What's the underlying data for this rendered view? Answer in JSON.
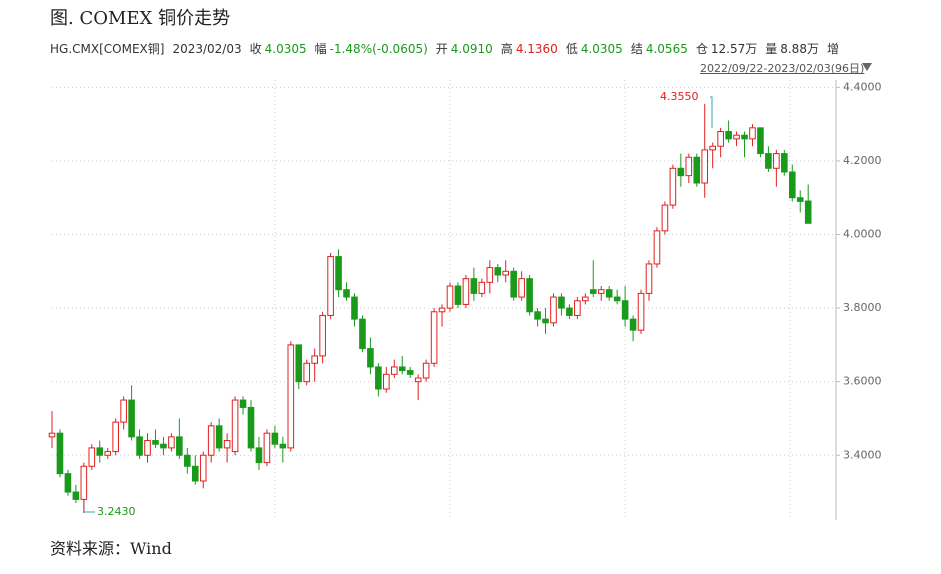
{
  "chart_data": {
    "type": "candlestick",
    "title": "图. COMEX 铜价走势",
    "header": [
      {
        "label": "HG.CMX[COMEX铜]",
        "color": "#333333"
      },
      {
        "label": "2023/02/03",
        "color": "#333333"
      },
      {
        "label": "收",
        "value": "4.0305",
        "color": "#1a9a1a"
      },
      {
        "label": "幅",
        "value": "-1.48%(-0.0605)",
        "color": "#1a9a1a"
      },
      {
        "label": "开",
        "value": "4.0910",
        "color": "#1a9a1a"
      },
      {
        "label": "高",
        "value": "4.1360",
        "color": "#e02020"
      },
      {
        "label": "低",
        "value": "4.0305",
        "color": "#1a9a1a"
      },
      {
        "label": "结",
        "value": "4.0565",
        "color": "#1a9a1a"
      },
      {
        "label": "仓",
        "value": "12.57万",
        "color": "#333333"
      },
      {
        "label": "量",
        "value": "8.88万",
        "color": "#333333"
      },
      {
        "label": "增",
        "color": "#333333"
      }
    ],
    "range_label": "2022/09/22-2023/02/03(96日)",
    "annotations": [
      "4.3550",
      "3.2430"
    ],
    "source": "资料来源：Wind",
    "up_color": "#e02020",
    "down_color": "#1a9a1a",
    "open": [
      3.45,
      3.46,
      3.35,
      3.3,
      3.28,
      3.37,
      3.42,
      3.4,
      3.41,
      3.49,
      3.55,
      3.45,
      3.4,
      3.44,
      3.43,
      3.42,
      3.45,
      3.4,
      3.37,
      3.33,
      3.4,
      3.48,
      3.42,
      3.41,
      3.55,
      3.53,
      3.42,
      3.38,
      3.46,
      3.43,
      3.42,
      3.7,
      3.6,
      3.65,
      3.67,
      3.78,
      3.94,
      3.85,
      3.83,
      3.77,
      3.69,
      3.64,
      3.58,
      3.62,
      3.64,
      3.63,
      3.6,
      3.61,
      3.65,
      3.79,
      3.8,
      3.86,
      3.81,
      3.88,
      3.84,
      3.87,
      3.91,
      3.89,
      3.9,
      3.83,
      3.88,
      3.79,
      3.77,
      3.76,
      3.83,
      3.8,
      3.78,
      3.82,
      3.85,
      3.84,
      3.85,
      3.83,
      3.82,
      3.77,
      3.74,
      3.84,
      3.92,
      4.01,
      4.08,
      4.18,
      4.16,
      4.21,
      4.14,
      4.23,
      4.24,
      4.28,
      4.26,
      4.27,
      4.26,
      4.29,
      4.22,
      4.18,
      4.22,
      4.17,
      4.1,
      4.091
    ],
    "high": [
      3.52,
      3.47,
      3.36,
      3.32,
      3.38,
      3.43,
      3.44,
      3.42,
      3.5,
      3.56,
      3.59,
      3.47,
      3.46,
      3.47,
      3.45,
      3.46,
      3.5,
      3.42,
      3.4,
      3.41,
      3.49,
      3.5,
      3.46,
      3.56,
      3.56,
      3.55,
      3.45,
      3.47,
      3.48,
      3.45,
      3.71,
      3.7,
      3.66,
      3.69,
      3.79,
      3.95,
      3.96,
      3.87,
      3.84,
      3.78,
      3.72,
      3.65,
      3.64,
      3.66,
      3.67,
      3.64,
      3.62,
      3.66,
      3.8,
      3.81,
      3.87,
      3.87,
      3.89,
      3.91,
      3.88,
      3.93,
      3.92,
      3.93,
      3.91,
      3.9,
      3.89,
      3.8,
      3.8,
      3.84,
      3.84,
      3.81,
      3.83,
      3.84,
      3.93,
      3.86,
      3.86,
      3.85,
      3.86,
      3.78,
      3.85,
      3.93,
      4.02,
      4.09,
      4.19,
      4.22,
      4.22,
      4.22,
      4.355,
      4.25,
      4.29,
      4.31,
      4.28,
      4.28,
      4.3,
      4.29,
      4.24,
      4.23,
      4.23,
      4.19,
      4.12,
      4.136
    ],
    "low": [
      3.42,
      3.34,
      3.29,
      3.27,
      3.243,
      3.36,
      3.38,
      3.39,
      3.4,
      3.47,
      3.44,
      3.39,
      3.38,
      3.42,
      3.4,
      3.41,
      3.39,
      3.35,
      3.32,
      3.31,
      3.38,
      3.41,
      3.38,
      3.4,
      3.51,
      3.41,
      3.36,
      3.37,
      3.42,
      3.38,
      3.41,
      3.58,
      3.59,
      3.6,
      3.65,
      3.77,
      3.83,
      3.82,
      3.75,
      3.68,
      3.62,
      3.56,
      3.57,
      3.61,
      3.62,
      3.61,
      3.55,
      3.6,
      3.64,
      3.75,
      3.79,
      3.8,
      3.8,
      3.82,
      3.83,
      3.84,
      3.87,
      3.87,
      3.82,
      3.82,
      3.78,
      3.75,
      3.73,
      3.75,
      3.78,
      3.77,
      3.77,
      3.81,
      3.83,
      3.82,
      3.82,
      3.81,
      3.75,
      3.71,
      3.73,
      3.82,
      3.91,
      4.0,
      4.07,
      4.13,
      4.14,
      4.13,
      4.1,
      4.18,
      4.21,
      4.25,
      4.24,
      4.21,
      4.24,
      4.21,
      4.17,
      4.13,
      4.16,
      4.09,
      4.06,
      4.0305
    ],
    "close": [
      3.46,
      3.35,
      3.3,
      3.28,
      3.37,
      3.42,
      3.4,
      3.41,
      3.49,
      3.55,
      3.45,
      3.4,
      3.44,
      3.43,
      3.42,
      3.45,
      3.4,
      3.37,
      3.33,
      3.4,
      3.48,
      3.42,
      3.44,
      3.55,
      3.53,
      3.42,
      3.38,
      3.46,
      3.43,
      3.42,
      3.7,
      3.6,
      3.65,
      3.67,
      3.78,
      3.94,
      3.85,
      3.83,
      3.77,
      3.69,
      3.64,
      3.58,
      3.62,
      3.64,
      3.63,
      3.62,
      3.61,
      3.65,
      3.79,
      3.8,
      3.86,
      3.81,
      3.88,
      3.84,
      3.87,
      3.91,
      3.89,
      3.9,
      3.83,
      3.88,
      3.79,
      3.77,
      3.76,
      3.83,
      3.8,
      3.78,
      3.82,
      3.83,
      3.84,
      3.85,
      3.83,
      3.82,
      3.77,
      3.74,
      3.84,
      3.92,
      4.01,
      4.08,
      4.18,
      4.16,
      4.21,
      4.14,
      4.23,
      4.24,
      4.28,
      4.26,
      4.27,
      4.26,
      4.29,
      4.22,
      4.18,
      4.22,
      4.17,
      4.1,
      4.09,
      4.0305
    ],
    "ylim": [
      3.224,
      4.42
    ],
    "yticks": [
      {
        "value": 3.4,
        "label": "3.4000"
      },
      {
        "value": 3.6,
        "label": "3.6000"
      },
      {
        "value": 3.8,
        "label": "3.8000"
      },
      {
        "value": 4.0,
        "label": "4.0000"
      },
      {
        "value": 4.2,
        "label": "4.2000"
      },
      {
        "value": 4.4,
        "label": "4.4000"
      }
    ],
    "grid": true
  }
}
